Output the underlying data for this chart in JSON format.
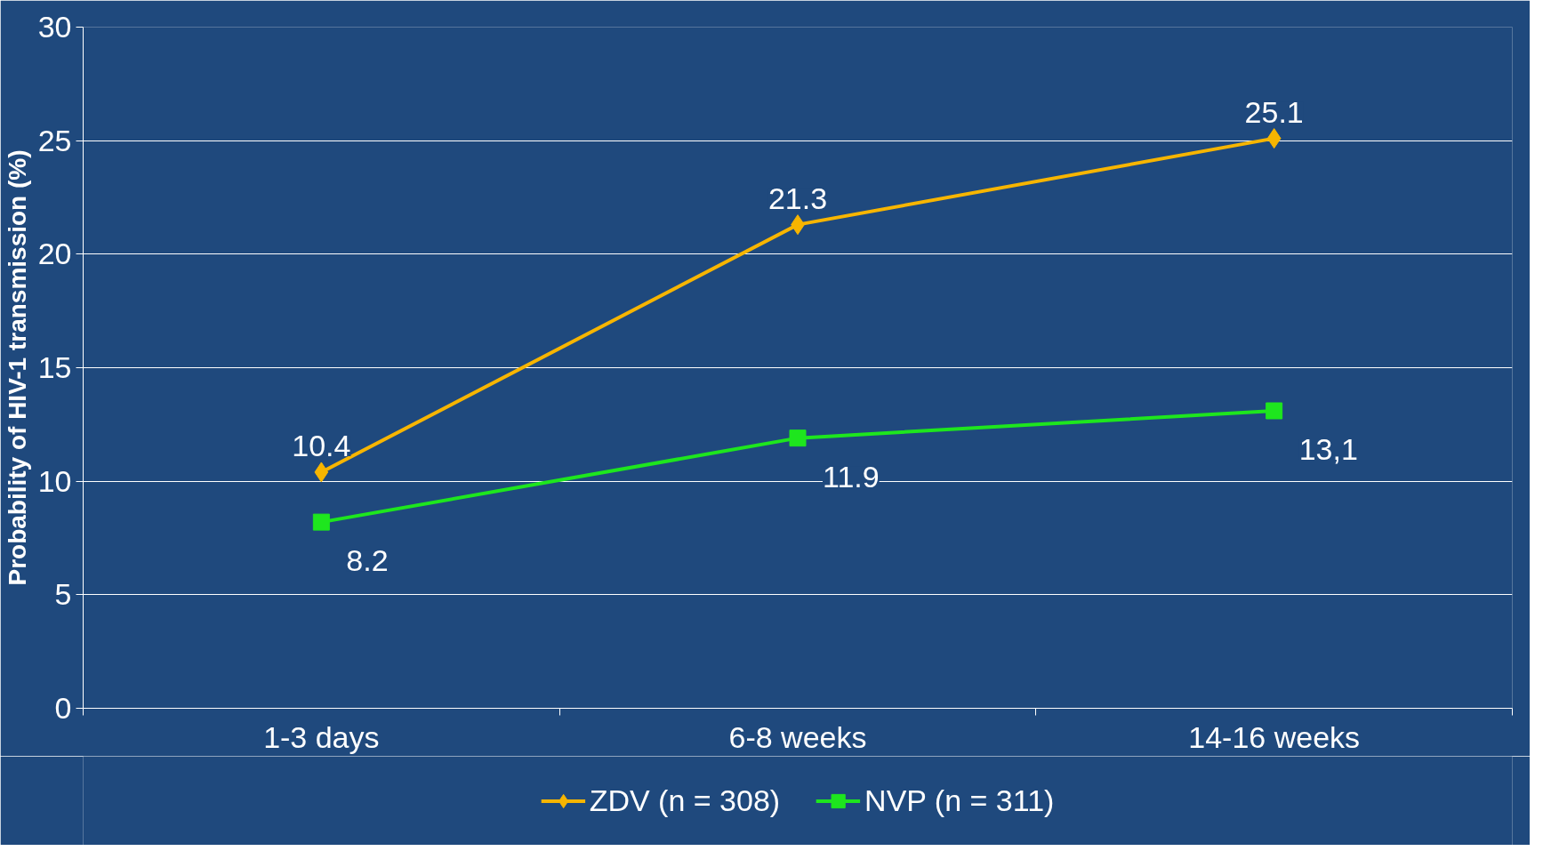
{
  "chart_data": {
    "type": "line",
    "ylabel": "Probability of HIV-1 transmission (%)",
    "categories": [
      "1-3 days",
      "6-8 weeks",
      "14-16 weeks"
    ],
    "series": [
      {
        "name": "ZDV (n = 308)",
        "color": "#f7b500",
        "marker": "diamond",
        "values": [
          10.4,
          21.3,
          25.1
        ],
        "value_labels": [
          "10.4",
          "21.3",
          "25.1"
        ]
      },
      {
        "name": "NVP (n = 311)",
        "color": "#1ee61e",
        "marker": "square",
        "values": [
          8.2,
          11.9,
          13.1
        ],
        "value_labels": [
          "8.2",
          "11.9",
          "13,1"
        ]
      }
    ],
    "ylim": [
      0,
      30
    ],
    "yticks": [
      0,
      5,
      10,
      15,
      20,
      25,
      30
    ],
    "grid": "y",
    "legend": "bottom"
  }
}
